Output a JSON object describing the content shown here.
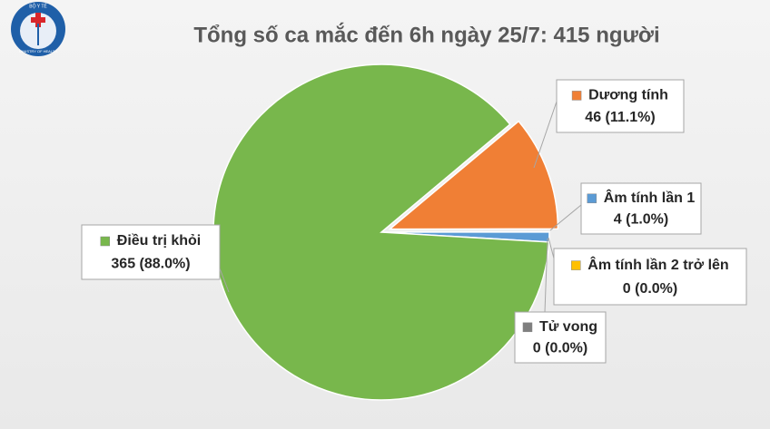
{
  "logo": {
    "top": "BỘ Y TẾ",
    "bottom": "MINISTRY OF HEALTH"
  },
  "chart_data": {
    "type": "pie",
    "title": "Tổng số ca mắc đến 6h ngày 25/7: 415 người",
    "categories": [
      "Dương tính",
      "Âm tính lần 1",
      "Âm tính lần 2 trở lên",
      "Tử vong",
      "Điều trị khỏi"
    ],
    "values": [
      46,
      4,
      0,
      0,
      365
    ],
    "value_labels": [
      "46 (11.1%)",
      "4 (1.0%)",
      "0 (0.0%)",
      "0 (0.0%)",
      "365 (88.0%)"
    ],
    "colors": [
      "#f07f35",
      "#5b9bd5",
      "#ffc000",
      "#7f7f7f",
      "#78b74c"
    ]
  }
}
